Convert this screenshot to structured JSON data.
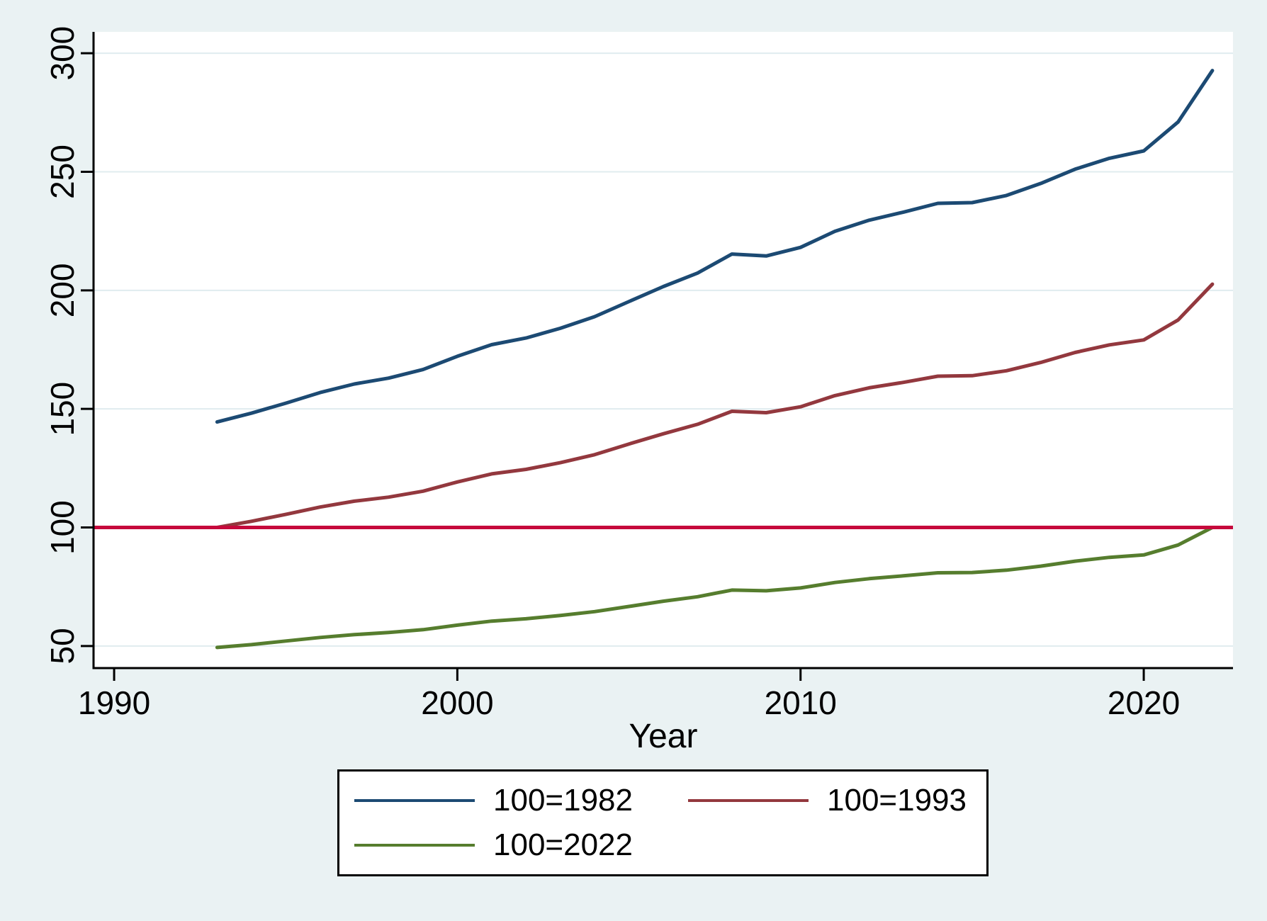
{
  "chart_data": {
    "type": "line",
    "title": "",
    "xlabel": "Year",
    "ylabel": "",
    "x": [
      1993,
      1994,
      1995,
      1996,
      1997,
      1998,
      1999,
      2000,
      2001,
      2002,
      2003,
      2004,
      2005,
      2006,
      2007,
      2008,
      2009,
      2010,
      2011,
      2012,
      2013,
      2014,
      2015,
      2016,
      2017,
      2018,
      2019,
      2020,
      2021,
      2022
    ],
    "series": [
      {
        "name": "100=1982",
        "color": "#1c4a73",
        "values": [
          144.5,
          148.2,
          152.4,
          156.9,
          160.5,
          163.0,
          166.6,
          172.2,
          177.1,
          179.9,
          184.0,
          188.9,
          195.3,
          201.6,
          207.3,
          215.3,
          214.5,
          218.1,
          224.9,
          229.6,
          233.0,
          236.7,
          237.0,
          240.0,
          245.1,
          251.1,
          255.7,
          258.8,
          271.0,
          292.7
        ]
      },
      {
        "name": "100=1993",
        "color": "#93383e",
        "values": [
          100.0,
          102.6,
          105.5,
          108.6,
          111.1,
          112.8,
          115.3,
          119.2,
          122.6,
          124.5,
          127.3,
          130.7,
          135.2,
          139.5,
          143.5,
          149.0,
          148.4,
          150.9,
          155.6,
          158.9,
          161.2,
          163.8,
          164.0,
          166.1,
          169.6,
          173.8,
          177.0,
          179.1,
          187.5,
          202.6
        ]
      },
      {
        "name": "100=2022",
        "color": "#567d2e",
        "values": [
          49.4,
          50.6,
          52.1,
          53.6,
          54.8,
          55.7,
          56.9,
          58.8,
          60.5,
          61.5,
          62.9,
          64.5,
          66.7,
          68.9,
          70.8,
          73.6,
          73.3,
          74.5,
          76.8,
          78.4,
          79.6,
          80.9,
          81.0,
          82.0,
          83.7,
          85.8,
          87.4,
          88.4,
          92.6,
          100.0
        ]
      }
    ],
    "refline": {
      "y": 100,
      "color": "#c6093c"
    },
    "x_ticks": [
      1990,
      2000,
      2010,
      2020
    ],
    "y_ticks": [
      50,
      100,
      150,
      200,
      250,
      300
    ],
    "xlim": [
      1989.4,
      2022.6
    ],
    "ylim": [
      40.7,
      309.0
    ],
    "grid": "horizontal",
    "legend_position": "bottom",
    "style": {
      "background": "#eaf2f3",
      "plot_background": "#ffffff",
      "grid_color": "#e0ecef",
      "axis_color": "#000000",
      "text_color": "#000000"
    }
  }
}
